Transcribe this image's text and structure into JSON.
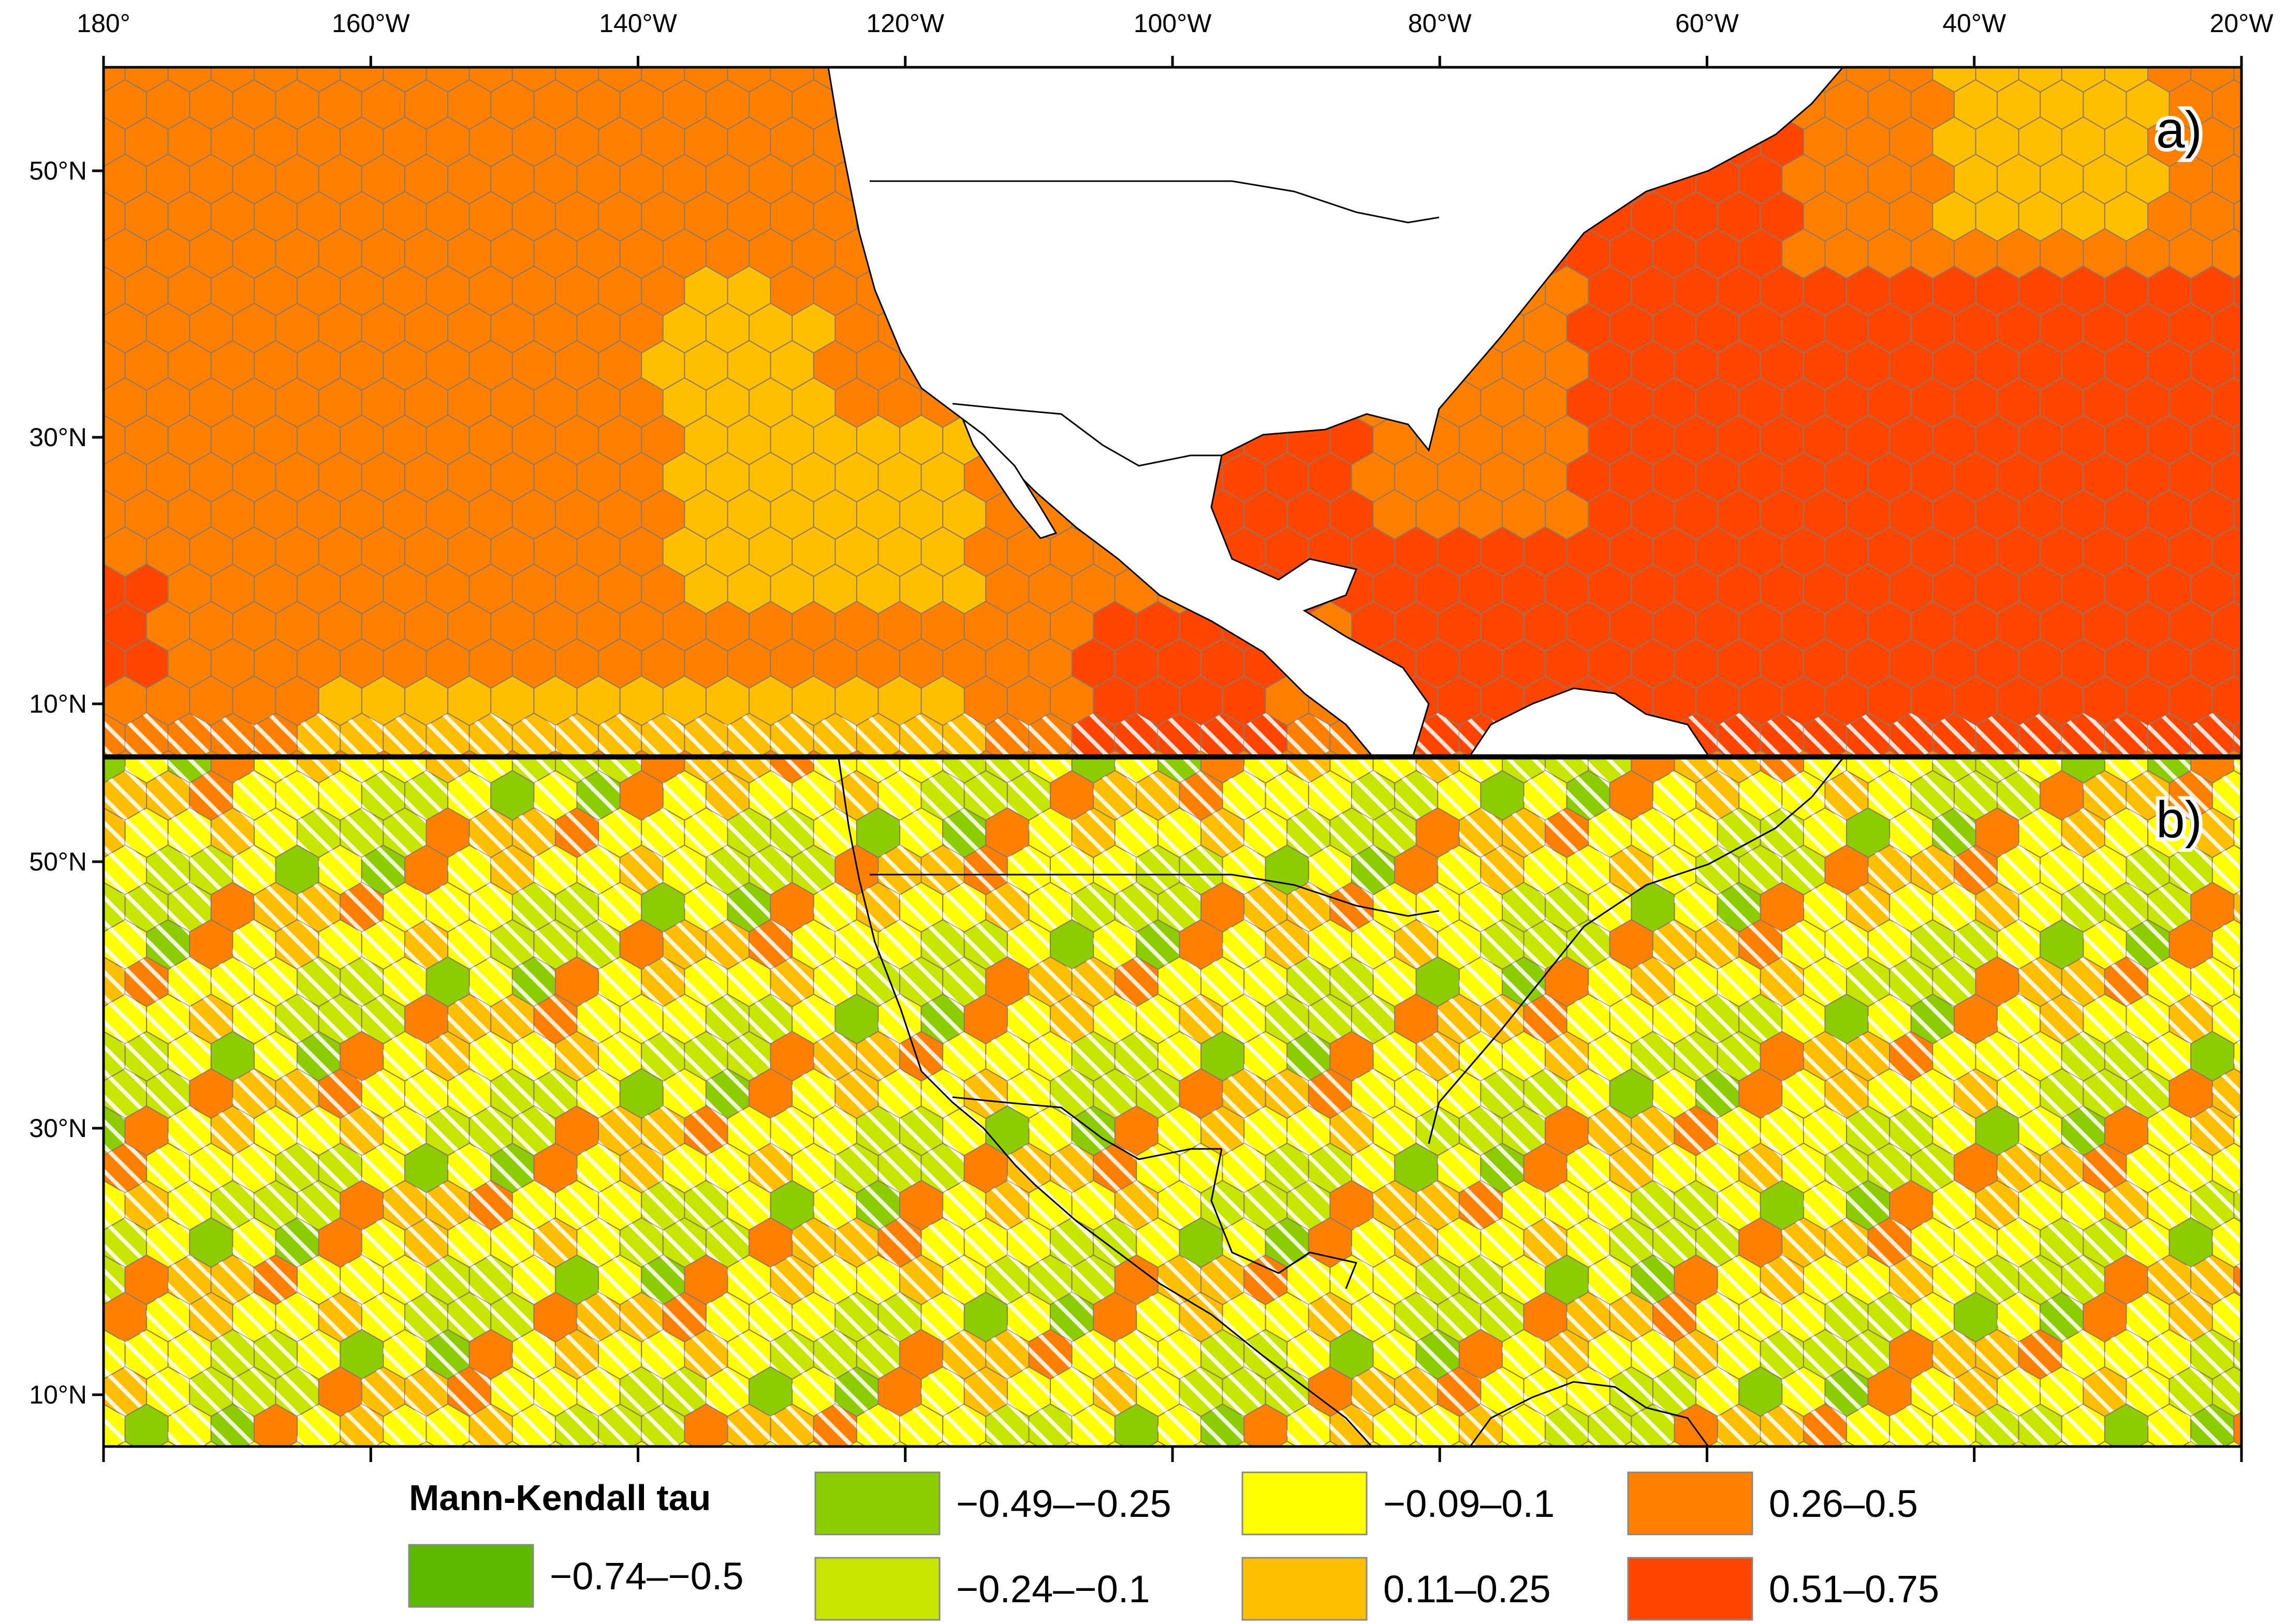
{
  "figure": {
    "panels": [
      {
        "label": "a)"
      },
      {
        "label": "b)"
      }
    ],
    "x_ticks": [
      "180°",
      "160°W",
      "140°W",
      "120°W",
      "100°W",
      "80°W",
      "60°W",
      "40°W",
      "20°W"
    ],
    "y_ticks": [
      "50°N",
      "30°N",
      "10°N"
    ],
    "legend": {
      "title": "Mann-Kendall tau",
      "items": [
        {
          "label": "−0.74–−0.5",
          "color": "#5db800"
        },
        {
          "label": "−0.49–−0.25",
          "color": "#8ccc00"
        },
        {
          "label": "−0.24–−0.1",
          "color": "#c6e600"
        },
        {
          "label": "−0.09–0.1",
          "color": "#ffff00"
        },
        {
          "label": "0.11–0.25",
          "color": "#ffbf00"
        },
        {
          "label": "0.26–0.5",
          "color": "#ff7f00"
        },
        {
          "label": "0.51–0.75",
          "color": "#ff4500"
        }
      ]
    }
  }
}
